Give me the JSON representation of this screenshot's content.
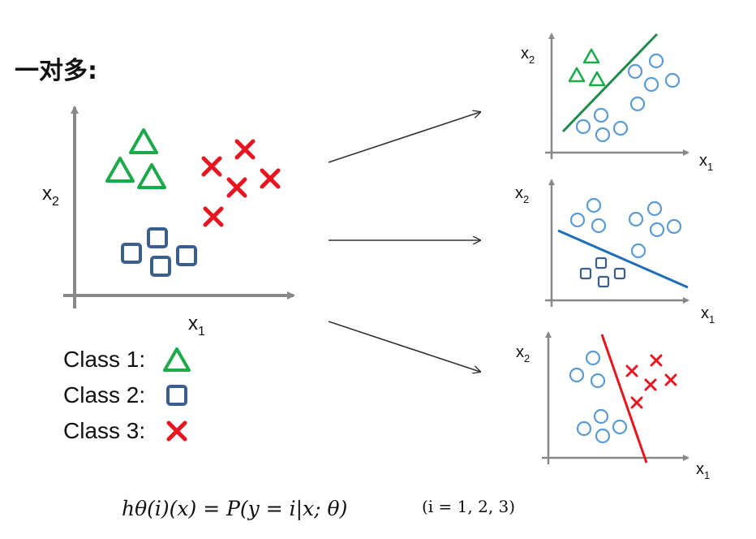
{
  "title": "一对多:",
  "axis_labels": {
    "x": "x",
    "x_sub": "1",
    "y": "x",
    "y_sub": "2"
  },
  "legend": [
    {
      "label": "Class 1:",
      "marker": "triangle",
      "color": "#1aaa4a"
    },
    {
      "label": "Class 2:",
      "marker": "square",
      "color": "#3a5f8f"
    },
    {
      "label": "Class 3:",
      "marker": "cross",
      "color": "#e8141e"
    }
  ],
  "formula": {
    "expression": "hθ(i)(x) = P(y = i|x; θ)",
    "index_note": "(i = 1, 2, 3)"
  },
  "colors": {
    "class1": "#1aaa4a",
    "class2": "#3a5f8f",
    "class3": "#e8141e",
    "rest": "#5b9bd5",
    "boundary1": "#1f8a4c",
    "boundary2": "#1c6fb8",
    "boundary3": "#e8141e",
    "axis": "#888888",
    "arrow": "#333333"
  },
  "icons": {
    "class1": "triangle-icon",
    "class2": "square-icon",
    "class3": "cross-icon",
    "rest": "circle-icon"
  }
}
